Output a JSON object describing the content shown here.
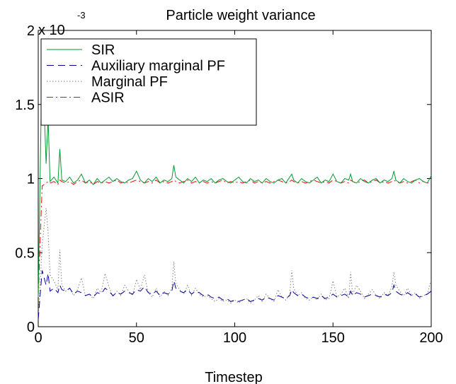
{
  "chart_data": {
    "type": "line",
    "title": "Particle weight variance",
    "xlabel": "Timestep",
    "ylabel": "",
    "xlim": [
      0,
      200
    ],
    "ylim": [
      0,
      0.002
    ],
    "y_exponent_label": "x 10",
    "y_exponent_power": "-3",
    "x_ticks": [
      0,
      50,
      100,
      150,
      200
    ],
    "x_tick_labels": [
      "0",
      "50",
      "100",
      "150",
      "200"
    ],
    "y_ticks": [
      0,
      0.0005,
      0.001,
      0.0015,
      0.002
    ],
    "y_tick_labels": [
      "0",
      "0.5",
      "1",
      "1.5",
      "2"
    ],
    "grid": false,
    "legend_position": "top-left",
    "x": [
      0,
      2,
      4,
      5,
      6,
      8,
      10,
      11,
      12,
      14,
      16,
      18,
      20,
      22,
      24,
      26,
      28,
      30,
      32,
      34,
      36,
      38,
      40,
      42,
      44,
      46,
      48,
      50,
      52,
      54,
      56,
      58,
      60,
      62,
      64,
      66,
      68,
      69,
      70,
      72,
      74,
      76,
      78,
      80,
      82,
      84,
      86,
      88,
      90,
      92,
      94,
      96,
      98,
      100,
      102,
      104,
      106,
      108,
      110,
      112,
      114,
      116,
      118,
      120,
      122,
      124,
      126,
      128,
      129,
      130,
      132,
      134,
      136,
      138,
      140,
      142,
      144,
      146,
      148,
      150,
      152,
      154,
      156,
      158,
      159,
      160,
      162,
      164,
      166,
      168,
      170,
      172,
      174,
      176,
      178,
      180,
      181,
      182,
      184,
      186,
      188,
      190,
      192,
      194,
      196,
      198,
      200
    ],
    "series": [
      {
        "name": "SIR",
        "color": "#009933",
        "dash": "solid",
        "values": [
          0.0002,
          0.00187,
          0.0011,
          0.00141,
          0.00098,
          0.00101,
          0.00097,
          0.0012,
          0.00099,
          0.00098,
          0.00101,
          0.00097,
          0.00099,
          0.00103,
          0.00097,
          0.00099,
          0.00096,
          0.001,
          0.00097,
          0.00099,
          0.00101,
          0.00098,
          0.001,
          0.00098,
          0.00097,
          0.00099,
          0.001,
          0.00105,
          0.00099,
          0.00097,
          0.001,
          0.00098,
          0.00101,
          0.00097,
          0.00099,
          0.00098,
          0.001,
          0.00109,
          0.00101,
          0.00099,
          0.00097,
          0.001,
          0.00098,
          0.00101,
          0.00097,
          0.00099,
          0.00098,
          0.001,
          0.00097,
          0.00099,
          0.001,
          0.00098,
          0.00097,
          0.00099,
          0.00101,
          0.00098,
          0.00097,
          0.001,
          0.00098,
          0.00099,
          0.00097,
          0.001,
          0.00098,
          0.00097,
          0.00099,
          0.001,
          0.00097,
          0.00101,
          0.00103,
          0.00099,
          0.00097,
          0.001,
          0.00098,
          0.00097,
          0.00099,
          0.00101,
          0.00097,
          0.00099,
          0.00098,
          0.00103,
          0.00098,
          0.00097,
          0.001,
          0.00099,
          0.00103,
          0.00098,
          0.00097,
          0.001,
          0.00098,
          0.00097,
          0.00099,
          0.001,
          0.00097,
          0.00099,
          0.00098,
          0.001,
          0.00105,
          0.00099,
          0.00097,
          0.001,
          0.00098,
          0.00097,
          0.00099,
          0.001,
          0.00098,
          0.00097,
          0.00102
        ]
      },
      {
        "name": "Auxiliary marginal PF",
        "color": "#000099",
        "dash": "10 6",
        "values": [
          5e-05,
          0.00038,
          0.00028,
          0.00036,
          0.00024,
          0.00026,
          0.00023,
          0.00028,
          0.00025,
          0.00024,
          0.00026,
          0.00022,
          0.00024,
          0.00023,
          0.00021,
          0.00022,
          0.0002,
          0.00023,
          0.00022,
          0.00026,
          0.00024,
          0.00021,
          0.00023,
          0.00022,
          0.00024,
          0.00023,
          0.00022,
          0.00025,
          0.00024,
          0.00027,
          0.00023,
          0.00022,
          0.00024,
          0.00021,
          0.00023,
          0.00022,
          0.00024,
          0.00031,
          0.00026,
          0.00024,
          0.00023,
          0.00025,
          0.00022,
          0.00024,
          0.00023,
          0.00021,
          0.00022,
          0.0002,
          0.00019,
          0.0002,
          0.00018,
          0.00019,
          0.00017,
          0.00018,
          0.00017,
          0.00018,
          0.00019,
          0.00017,
          0.00018,
          0.00019,
          0.00018,
          0.0002,
          0.00019,
          0.00018,
          0.00021,
          0.0002,
          0.00019,
          0.00021,
          0.00025,
          0.00023,
          0.00021,
          0.00022,
          0.0002,
          0.00019,
          0.0002,
          0.00019,
          0.00021,
          0.00019,
          0.0002,
          0.00022,
          0.0002,
          0.00021,
          0.00022,
          0.0002,
          0.00024,
          0.00021,
          0.00023,
          0.00022,
          0.0002,
          0.00021,
          0.00022,
          0.00021,
          0.0002,
          0.00022,
          0.00021,
          0.00023,
          0.00028,
          0.00024,
          0.00022,
          0.00021,
          0.00023,
          0.00021,
          0.00022,
          0.0002,
          0.00021,
          0.00022,
          0.00024
        ]
      },
      {
        "name": "Marginal PF",
        "color": "#808080",
        "dash": "1.5 2.5",
        "values": [
          5e-05,
          0.00055,
          0.0008,
          0.00064,
          0.00035,
          0.00031,
          0.00025,
          0.00052,
          0.00028,
          0.00024,
          0.00026,
          0.00021,
          0.00025,
          0.00033,
          0.00021,
          0.00022,
          0.00019,
          0.00026,
          0.00023,
          0.00036,
          0.00027,
          0.0002,
          0.00024,
          0.00021,
          0.00028,
          0.00024,
          0.00021,
          0.00032,
          0.00025,
          0.00035,
          0.00023,
          0.0002,
          0.00026,
          0.0002,
          0.00024,
          0.00021,
          0.00026,
          0.00044,
          0.00029,
          0.00025,
          0.00022,
          0.00028,
          0.00021,
          0.00026,
          0.00022,
          0.0002,
          0.00021,
          0.00019,
          0.00017,
          0.00019,
          0.00017,
          0.00018,
          0.00016,
          0.00018,
          0.00016,
          0.00018,
          0.00019,
          0.00016,
          0.00018,
          0.00021,
          0.00017,
          0.00022,
          0.00019,
          0.00017,
          0.00025,
          0.0002,
          0.00018,
          0.00022,
          0.00038,
          0.00026,
          0.00021,
          0.00023,
          0.00019,
          0.00018,
          0.0002,
          0.00018,
          0.00022,
          0.00018,
          0.00019,
          0.00031,
          0.0002,
          0.00022,
          0.00026,
          0.00019,
          0.00037,
          0.00022,
          0.00028,
          0.00024,
          0.00019,
          0.00022,
          0.00025,
          0.00021,
          0.00019,
          0.00023,
          0.00021,
          0.00027,
          0.00037,
          0.00028,
          0.00024,
          0.00021,
          0.00026,
          0.00021,
          0.00023,
          0.00019,
          0.00021,
          0.00022,
          0.00032
        ]
      },
      {
        "name": "ASIR",
        "color": "#ff0000",
        "dash": "9 4 2 4",
        "values": [
          0.0002,
          0.00095,
          0.00097,
          0.00098,
          0.00097,
          0.00098,
          0.00096,
          0.00099,
          0.00098,
          0.00097,
          0.00098,
          0.00096,
          0.00098,
          0.00099,
          0.00097,
          0.00098,
          0.00096,
          0.00098,
          0.00097,
          0.00098,
          0.00097,
          0.00098,
          0.00099,
          0.00097,
          0.00098,
          0.00097,
          0.00098,
          0.00099,
          0.00098,
          0.00097,
          0.00098,
          0.00097,
          0.00099,
          0.00097,
          0.00098,
          0.00097,
          0.00098,
          0.00099,
          0.00098,
          0.00097,
          0.00098,
          0.00099,
          0.00097,
          0.00098,
          0.00097,
          0.00098,
          0.00097,
          0.00098,
          0.00097,
          0.00098,
          0.00099,
          0.00097,
          0.00098,
          0.00097,
          0.00098,
          0.00097,
          0.00098,
          0.00099,
          0.00097,
          0.00098,
          0.00097,
          0.00098,
          0.00097,
          0.00098,
          0.00099,
          0.00098,
          0.00097,
          0.00098,
          0.00099,
          0.00098,
          0.00097,
          0.00098,
          0.00097,
          0.00098,
          0.00099,
          0.00098,
          0.00097,
          0.00098,
          0.00097,
          0.00099,
          0.00098,
          0.00097,
          0.00098,
          0.00097,
          0.00099,
          0.00098,
          0.00097,
          0.00098,
          0.00099,
          0.00097,
          0.00098,
          0.00099,
          0.00097,
          0.00098,
          0.00097,
          0.00098,
          0.00099,
          0.00098,
          0.00097,
          0.00098,
          0.00097,
          0.00098,
          0.00099,
          0.00097,
          0.00098,
          0.00097,
          0.00098
        ]
      }
    ]
  }
}
